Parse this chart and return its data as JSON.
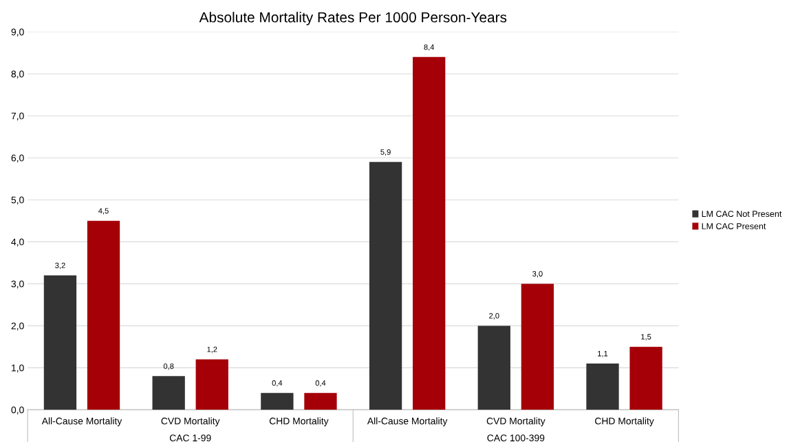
{
  "chart_data": {
    "type": "bar",
    "title": "Absolute Mortality Rates Per 1000 Person-Years",
    "categories": [
      "All-Cause Mortality",
      "CVD Mortality",
      "CHD Mortality",
      "All-Cause Mortality",
      "CVD Mortality",
      "CHD Mortality"
    ],
    "series": [
      {
        "name": "LM CAC Not Present",
        "color": "#333333",
        "values": [
          3.2,
          0.8,
          0.4,
          5.9,
          2.0,
          1.1
        ],
        "value_labels": [
          "3,2",
          "0,8",
          "0,4",
          "5,9",
          "2,0",
          "1,1"
        ]
      },
      {
        "name": "LM CAC Present",
        "color": "#a50008",
        "values": [
          4.5,
          1.2,
          0.4,
          8.4,
          3.0,
          1.5
        ],
        "value_labels": [
          "4,5",
          "1,2",
          "0,4",
          "8,4",
          "3,0",
          "1,5"
        ]
      }
    ],
    "annotations": [
      "CAC 1-99",
      "CAC 100-399"
    ],
    "ylim": [
      0,
      9
    ],
    "yticks": [
      {
        "value": 0,
        "label": "0,0"
      },
      {
        "value": 1,
        "label": "1,0"
      },
      {
        "value": 2,
        "label": "2,0"
      },
      {
        "value": 3,
        "label": "3,0"
      },
      {
        "value": 4,
        "label": "4,0"
      },
      {
        "value": 5,
        "label": "5,0"
      },
      {
        "value": 6,
        "label": "6,0"
      },
      {
        "value": 7,
        "label": "7,0"
      },
      {
        "value": 8,
        "label": "8,0"
      },
      {
        "value": 9,
        "label": "9,0"
      }
    ],
    "grid": "y",
    "legend": "right"
  }
}
